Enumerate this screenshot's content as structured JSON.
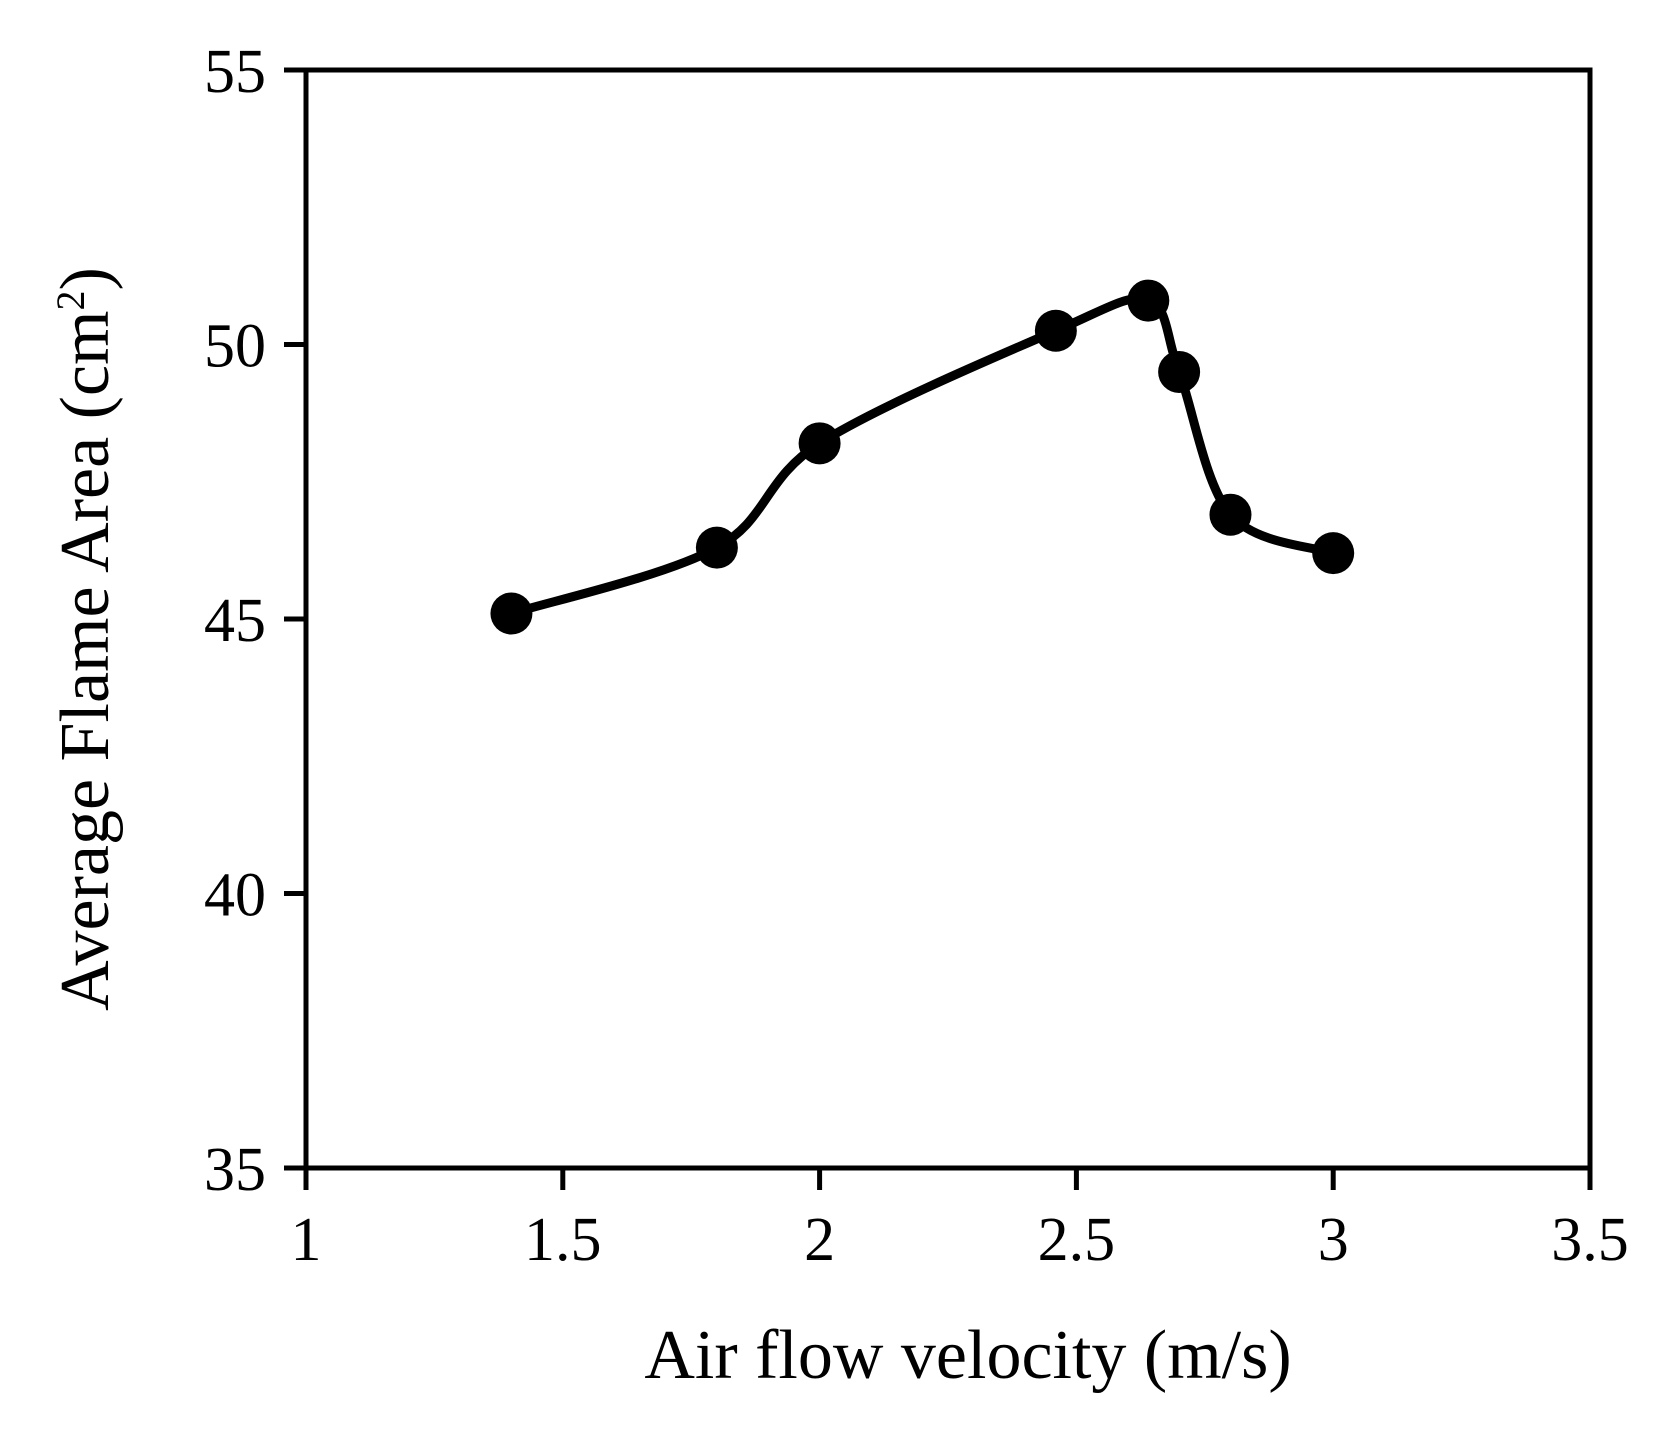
{
  "chart_data": {
    "type": "line",
    "title": "",
    "xlabel": "Air flow velocity (m/s)",
    "ylabel": "Average Flame Area  (cm",
    "ylabel_superscript": "2",
    "ylabel_close": ")",
    "xlim": [
      1,
      3.5
    ],
    "ylim": [
      35,
      55
    ],
    "xticks": [
      {
        "value": 1,
        "label": "1"
      },
      {
        "value": 1.5,
        "label": "1.5"
      },
      {
        "value": 2,
        "label": "2"
      },
      {
        "value": 2.5,
        "label": "2.5"
      },
      {
        "value": 3,
        "label": "3"
      },
      {
        "value": 3.5,
        "label": "3.5"
      }
    ],
    "yticks": [
      {
        "value": 35,
        "label": "35"
      },
      {
        "value": 40,
        "label": "40"
      },
      {
        "value": 45,
        "label": "45"
      },
      {
        "value": 50,
        "label": "50"
      },
      {
        "value": 55,
        "label": "55"
      }
    ],
    "grid": false,
    "legend": "none",
    "series": [
      {
        "name": "Average Flame Area",
        "color": "#000000",
        "smooth": true,
        "marker": "circle",
        "x": [
          1.4,
          1.8,
          2.0,
          2.46,
          2.64,
          2.7,
          2.8,
          3.0
        ],
        "y": [
          45.1,
          46.3,
          48.2,
          50.25,
          50.8,
          49.5,
          46.9,
          46.2
        ]
      }
    ]
  }
}
